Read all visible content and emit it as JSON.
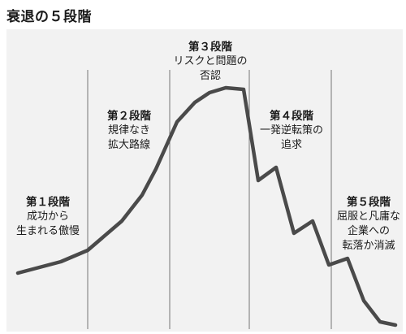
{
  "title": "衰退の５段階",
  "colors": {
    "curve": "#4a4a4a",
    "divider": "#777777",
    "panel": "#f2f2f2"
  },
  "stages": [
    {
      "name": "第１段階",
      "desc_lines": [
        "成功から",
        "生まれる傲慢"
      ]
    },
    {
      "name": "第２段階",
      "desc_lines": [
        "規律なき",
        "拡大路線"
      ]
    },
    {
      "name": "第３段階",
      "desc_lines": [
        "リスクと問題の",
        "否認"
      ]
    },
    {
      "name": "第４段階",
      "desc_lines": [
        "一発逆転策の",
        "追求"
      ]
    },
    {
      "name": "第５段階",
      "desc_lines": [
        "屈服と凡庸な",
        "企業への",
        "転落か消滅"
      ]
    }
  ]
}
